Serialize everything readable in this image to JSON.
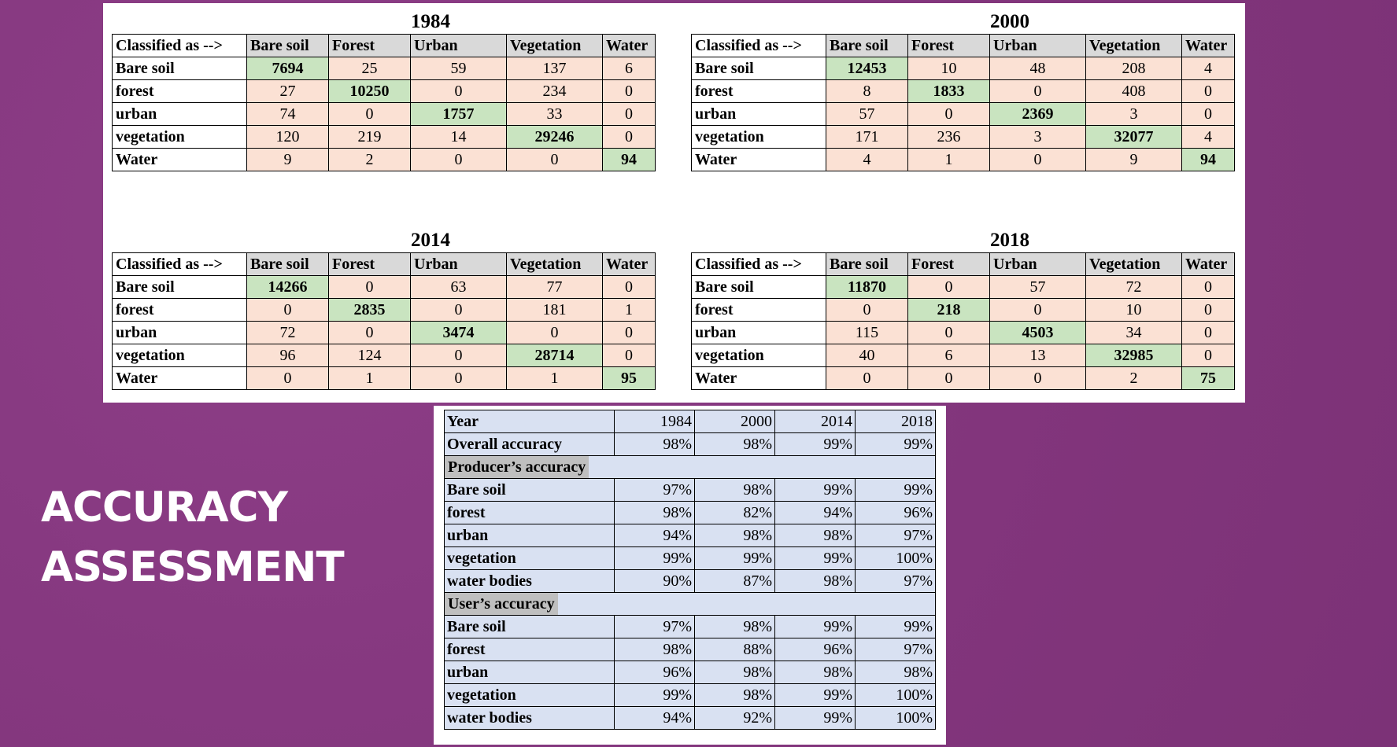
{
  "slide": {
    "title_line1": "ACCURACY",
    "title_line2": "ASSESSMENT",
    "background_color": "#863880"
  },
  "confusion_matrices": {
    "header_corner": "Classified as -->",
    "columns": [
      "Bare soil",
      "Forest",
      "Urban",
      "Vegetation",
      "Water"
    ],
    "row_labels": [
      "Bare soil",
      "forest",
      "urban",
      "vegetation",
      "Water"
    ],
    "colors": {
      "diagonal": "#c9e4c0",
      "off_diagonal": "#fbe1d4",
      "header": "#d9d9d9"
    },
    "years": [
      {
        "year": "1984",
        "rows": [
          [
            "7694",
            "25",
            "59",
            "137",
            "6"
          ],
          [
            "27",
            "10250",
            "0",
            "234",
            "0"
          ],
          [
            "74",
            "0",
            "1757",
            "33",
            "0"
          ],
          [
            "120",
            "219",
            "14",
            "29246",
            "0"
          ],
          [
            "9",
            "2",
            "0",
            "0",
            "94"
          ]
        ]
      },
      {
        "year": "2000",
        "rows": [
          [
            "12453",
            "10",
            "48",
            "208",
            "4"
          ],
          [
            "8",
            "1833",
            "0",
            "408",
            "0"
          ],
          [
            "57",
            "0",
            "2369",
            "3",
            "0"
          ],
          [
            "171",
            "236",
            "3",
            "32077",
            "4"
          ],
          [
            "4",
            "1",
            "0",
            "9",
            "94"
          ]
        ]
      },
      {
        "year": "2014",
        "rows": [
          [
            "14266",
            "0",
            "63",
            "77",
            "0"
          ],
          [
            "0",
            "2835",
            "0",
            "181",
            "1"
          ],
          [
            "72",
            "0",
            "3474",
            "0",
            "0"
          ],
          [
            "96",
            "124",
            "0",
            "28714",
            "0"
          ],
          [
            "0",
            "1",
            "0",
            "1",
            "95"
          ]
        ]
      },
      {
        "year": "2018",
        "rows": [
          [
            "11870",
            "0",
            "57",
            "72",
            "0"
          ],
          [
            "0",
            "218",
            "0",
            "10",
            "0"
          ],
          [
            "115",
            "0",
            "4503",
            "34",
            "0"
          ],
          [
            "40",
            "6",
            "13",
            "32985",
            "0"
          ],
          [
            "0",
            "0",
            "0",
            "2",
            "75"
          ]
        ]
      }
    ]
  },
  "accuracy_table": {
    "header": {
      "label": "Year",
      "years": [
        "1984",
        "2000",
        "2014",
        "2018"
      ]
    },
    "overall": {
      "label": "Overall accuracy",
      "values": [
        "98%",
        "98%",
        "99%",
        "99%"
      ]
    },
    "producers": {
      "label": "Producer’s accuracy",
      "rows": [
        {
          "label": "Bare soil",
          "values": [
            "97%",
            "98%",
            "99%",
            "99%"
          ]
        },
        {
          "label": "forest",
          "values": [
            "98%",
            "82%",
            "94%",
            "96%"
          ]
        },
        {
          "label": "urban",
          "values": [
            "94%",
            "98%",
            "98%",
            "97%"
          ]
        },
        {
          "label": "vegetation",
          "values": [
            "99%",
            "99%",
            "99%",
            "100%"
          ]
        },
        {
          "label": "water bodies",
          "values": [
            "90%",
            "87%",
            "98%",
            "97%"
          ]
        }
      ]
    },
    "users": {
      "label": "User’s accuracy",
      "rows": [
        {
          "label": "Bare soil",
          "values": [
            "97%",
            "98%",
            "99%",
            "99%"
          ]
        },
        {
          "label": "forest",
          "values": [
            "98%",
            "88%",
            "96%",
            "97%"
          ]
        },
        {
          "label": "urban",
          "values": [
            "96%",
            "98%",
            "98%",
            "98%"
          ]
        },
        {
          "label": "vegetation",
          "values": [
            "99%",
            "98%",
            "99%",
            "100%"
          ]
        },
        {
          "label": "water bodies",
          "values": [
            "94%",
            "92%",
            "99%",
            "100%"
          ]
        }
      ]
    }
  }
}
